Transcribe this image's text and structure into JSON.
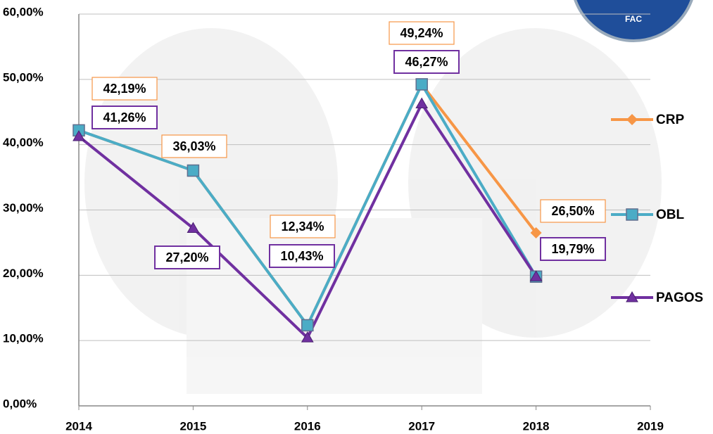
{
  "chart_data": {
    "type": "line",
    "x": [
      2014,
      2015,
      2016,
      2017,
      2018
    ],
    "xlim": [
      2014,
      2019
    ],
    "xticks": [
      2014,
      2015,
      2016,
      2017,
      2018,
      2019
    ],
    "ylim": [
      0,
      60
    ],
    "yticks": [
      {
        "value": 0,
        "label": "0,00%"
      },
      {
        "value": 10,
        "label": "10,00%"
      },
      {
        "value": 20,
        "label": "20,00%"
      },
      {
        "value": 30,
        "label": "30,00%"
      },
      {
        "value": 40,
        "label": "40,00%"
      },
      {
        "value": 50,
        "label": "50,00%"
      },
      {
        "value": 60,
        "label": "60,00%"
      }
    ],
    "grid": true,
    "legend": "right",
    "logo_text": "FAC",
    "series": [
      {
        "name": "CRP",
        "color": "#f79646",
        "marker": "diamond",
        "values": [
          42.19,
          36.03,
          12.34,
          49.24,
          26.5
        ],
        "value_labels": [
          "42,19%",
          "36,03%",
          "12,34%",
          "49,24%",
          "26,50%"
        ]
      },
      {
        "name": "OBL",
        "color": "#4bacc6",
        "marker": "square",
        "values": [
          42.19,
          36.03,
          12.34,
          49.24,
          19.79
        ]
      },
      {
        "name": "PAGOS",
        "color": "#7030a0",
        "marker": "triangle",
        "values": [
          41.26,
          27.2,
          10.43,
          46.27,
          19.79
        ],
        "value_labels": [
          "41,26%",
          "27,20%",
          "10,43%",
          "46,27%",
          "19,79%"
        ]
      }
    ]
  }
}
